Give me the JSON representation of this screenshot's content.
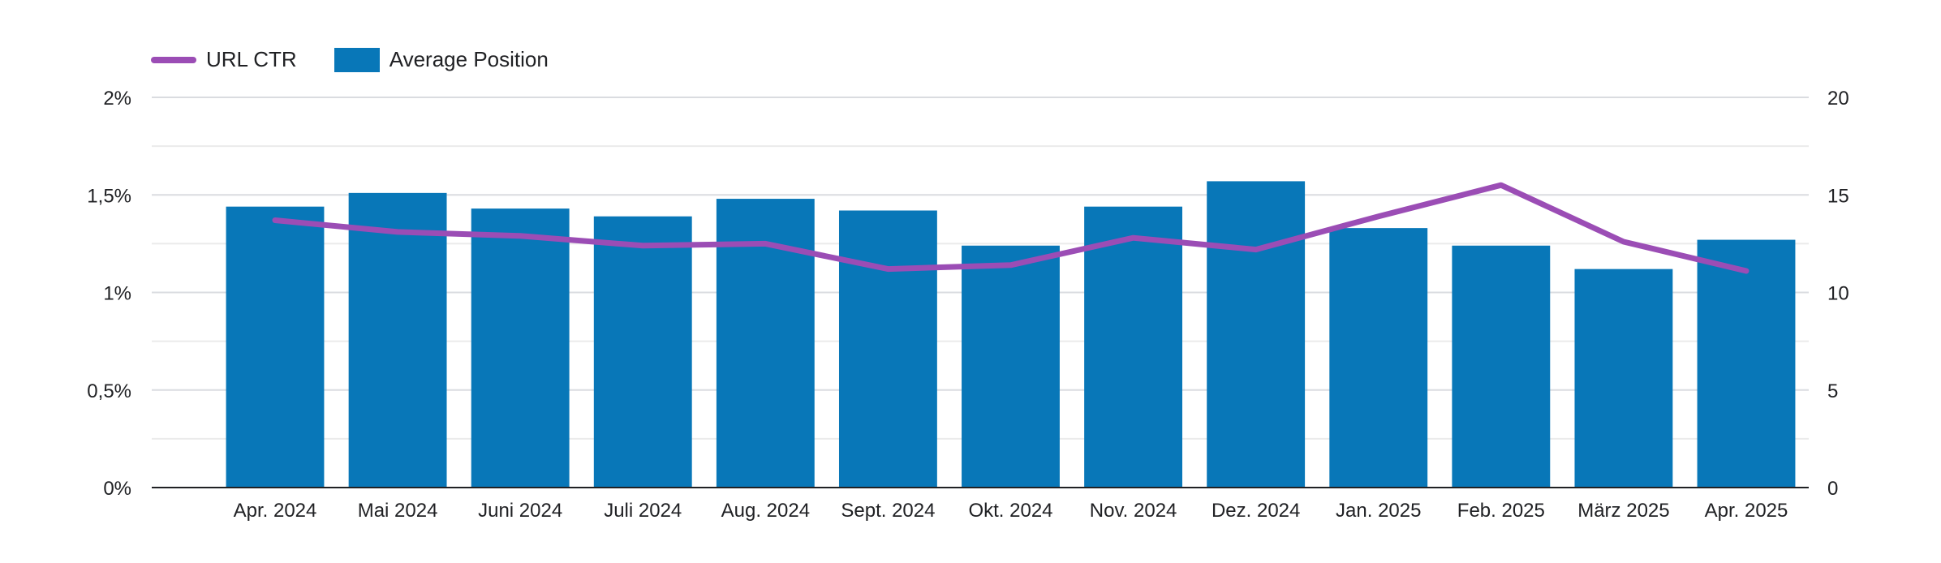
{
  "chart_data": {
    "type": "bar",
    "categories": [
      "Apr. 2024",
      "Mai 2024",
      "Juni 2024",
      "Juli 2024",
      "Aug. 2024",
      "Sept. 2024",
      "Okt. 2024",
      "Nov. 2024",
      "Dez. 2024",
      "Jan. 2025",
      "Feb. 2025",
      "März 2025",
      "Apr. 2025"
    ],
    "series": [
      {
        "name": "Average Position",
        "type": "bar",
        "axis": "right",
        "color": "#0877B8",
        "values": [
          14.4,
          15.1,
          14.3,
          13.9,
          14.8,
          14.2,
          12.4,
          14.4,
          15.7,
          13.3,
          12.4,
          11.2,
          12.7
        ]
      },
      {
        "name": "URL CTR",
        "type": "line",
        "axis": "left",
        "unit": "%",
        "color": "#9B4DB5",
        "values": [
          1.37,
          1.31,
          1.29,
          1.24,
          1.25,
          1.12,
          1.14,
          1.28,
          1.22,
          1.39,
          1.55,
          1.26,
          1.11
        ]
      }
    ],
    "y_left": {
      "ylim": [
        0,
        2
      ],
      "ticks": [
        "0%",
        "0,5%",
        "1%",
        "1,5%",
        "2%"
      ]
    },
    "y_right": {
      "ylim": [
        0,
        20
      ],
      "ticks": [
        "0",
        "5",
        "10",
        "15",
        "20"
      ]
    },
    "grid": true,
    "legend_position": "top-left",
    "title": "",
    "xlabel": "",
    "ylabel": ""
  }
}
